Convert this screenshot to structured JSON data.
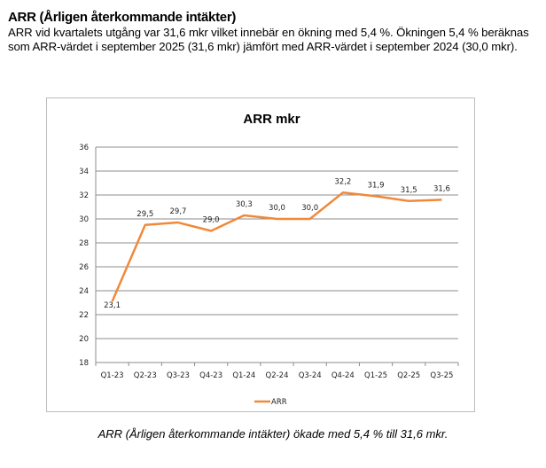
{
  "document": {
    "heading": "ARR (Årligen återkommande intäkter)",
    "paragraph": "ARR vid kvartalets utgång var 31,6 mkr vilket innebär en ökning med 5,4 %. Ökningen 5,4 % beräknas som ARR-värdet i september 2025 (31,6 mkr) jämfört med ARR-värdet i september 2024 (30,0 mkr).",
    "caption": "ARR (Årligen återkommande intäkter) ökade med 5,4 % till 31,6 mkr."
  },
  "chart_data": {
    "type": "line",
    "title": "ARR mkr",
    "xlabel": "",
    "ylabel": "",
    "categories": [
      "Q1-23",
      "Q2-23",
      "Q3-23",
      "Q4-23",
      "Q1-24",
      "Q2-24",
      "Q3-24",
      "Q4-24",
      "Q1-25",
      "Q2-25",
      "Q3-25"
    ],
    "series": [
      {
        "name": "ARR",
        "values": [
          23.1,
          29.5,
          29.7,
          29.0,
          30.3,
          30.0,
          30.0,
          32.2,
          31.9,
          31.5,
          31.6
        ],
        "labels": [
          "23,1",
          "29,5",
          "29,7",
          "29,0",
          "30,3",
          "30,0",
          "30,0",
          "32,2",
          "31,9",
          "31,5",
          "31,6"
        ],
        "color": "#f0893a"
      }
    ],
    "ylim": [
      18,
      36
    ],
    "yticks": [
      "18",
      "20",
      "22",
      "24",
      "26",
      "28",
      "30",
      "32",
      "34",
      "36"
    ],
    "grid": true,
    "legend": "bottom"
  }
}
